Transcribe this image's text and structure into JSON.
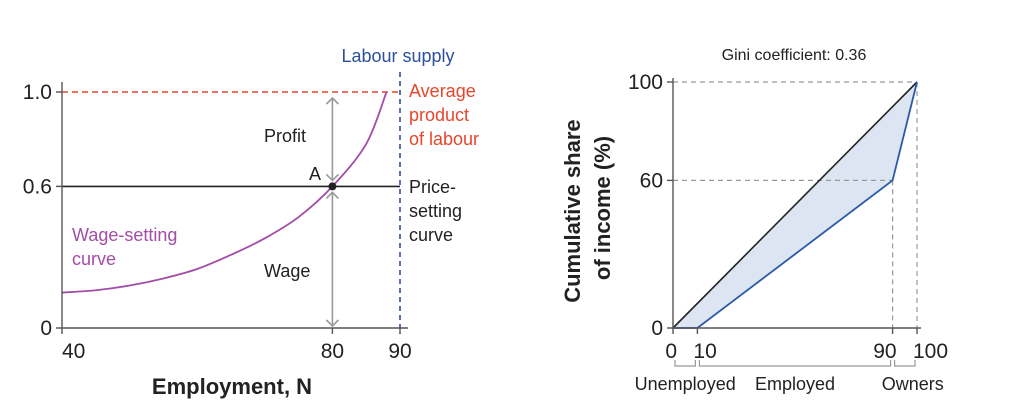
{
  "chart_data": [
    {
      "type": "line",
      "xlabel": "Employment, N",
      "ylabel": "",
      "xlim": [
        40,
        90
      ],
      "ylim": [
        0,
        1.0
      ],
      "x_ticks": [
        40,
        80,
        90
      ],
      "y_ticks": [
        0,
        0.6,
        1.0
      ],
      "x_tick_labels": [
        "40",
        "80",
        "90"
      ],
      "y_tick_labels": [
        "0",
        "0.6",
        "1.0"
      ],
      "series": [
        {
          "name": "Wage-setting curve",
          "color": "#a34ca8",
          "x": [
            40,
            45,
            50,
            55,
            60,
            65,
            70,
            75,
            80,
            85,
            88
          ],
          "y": [
            0.15,
            0.16,
            0.18,
            0.21,
            0.25,
            0.31,
            0.38,
            0.47,
            0.6,
            0.78,
            1.0
          ]
        },
        {
          "name": "Price-setting curve",
          "color": "#222222",
          "y": 0.6
        },
        {
          "name": "Average product of labour",
          "color": "#e8452c",
          "y": 1.0
        },
        {
          "name": "Labour supply",
          "color": "#2c4f9e",
          "x": 90
        }
      ],
      "labels": {
        "labour_supply": "Labour supply",
        "average_product": [
          "Average",
          "product",
          "of labour"
        ],
        "price_setting": [
          "Price-",
          "setting",
          "curve"
        ],
        "wage_setting": [
          "Wage-setting",
          "curve"
        ],
        "profit": "Profit",
        "wage": "Wage",
        "point": "A"
      },
      "point_a": {
        "x": 80,
        "y": 0.6
      }
    },
    {
      "type": "line",
      "title": "Gini coefficient: 0.36",
      "ylabel": [
        "Cumulative share",
        "of income (%)"
      ],
      "xlim": [
        0,
        100
      ],
      "ylim": [
        0,
        100
      ],
      "x_ticks": [
        0,
        10,
        90,
        100
      ],
      "y_ticks": [
        0,
        60,
        100
      ],
      "x_tick_labels": [
        "0",
        "10",
        "90",
        "100"
      ],
      "y_tick_labels": [
        "0",
        "60",
        "100"
      ],
      "series": [
        {
          "name": "Equality line",
          "color": "#222222",
          "x": [
            0,
            100
          ],
          "y": [
            0,
            100
          ]
        },
        {
          "name": "Lorenz curve",
          "color": "#2c5aa8",
          "x": [
            0,
            10,
            90,
            100
          ],
          "y": [
            0,
            0,
            60,
            100
          ]
        }
      ],
      "fill_color": "#dde4f2",
      "group_labels": [
        "Unemployed",
        "Employed",
        "Owners"
      ],
      "group_ranges": [
        [
          0,
          10
        ],
        [
          10,
          90
        ],
        [
          90,
          100
        ]
      ]
    }
  ]
}
